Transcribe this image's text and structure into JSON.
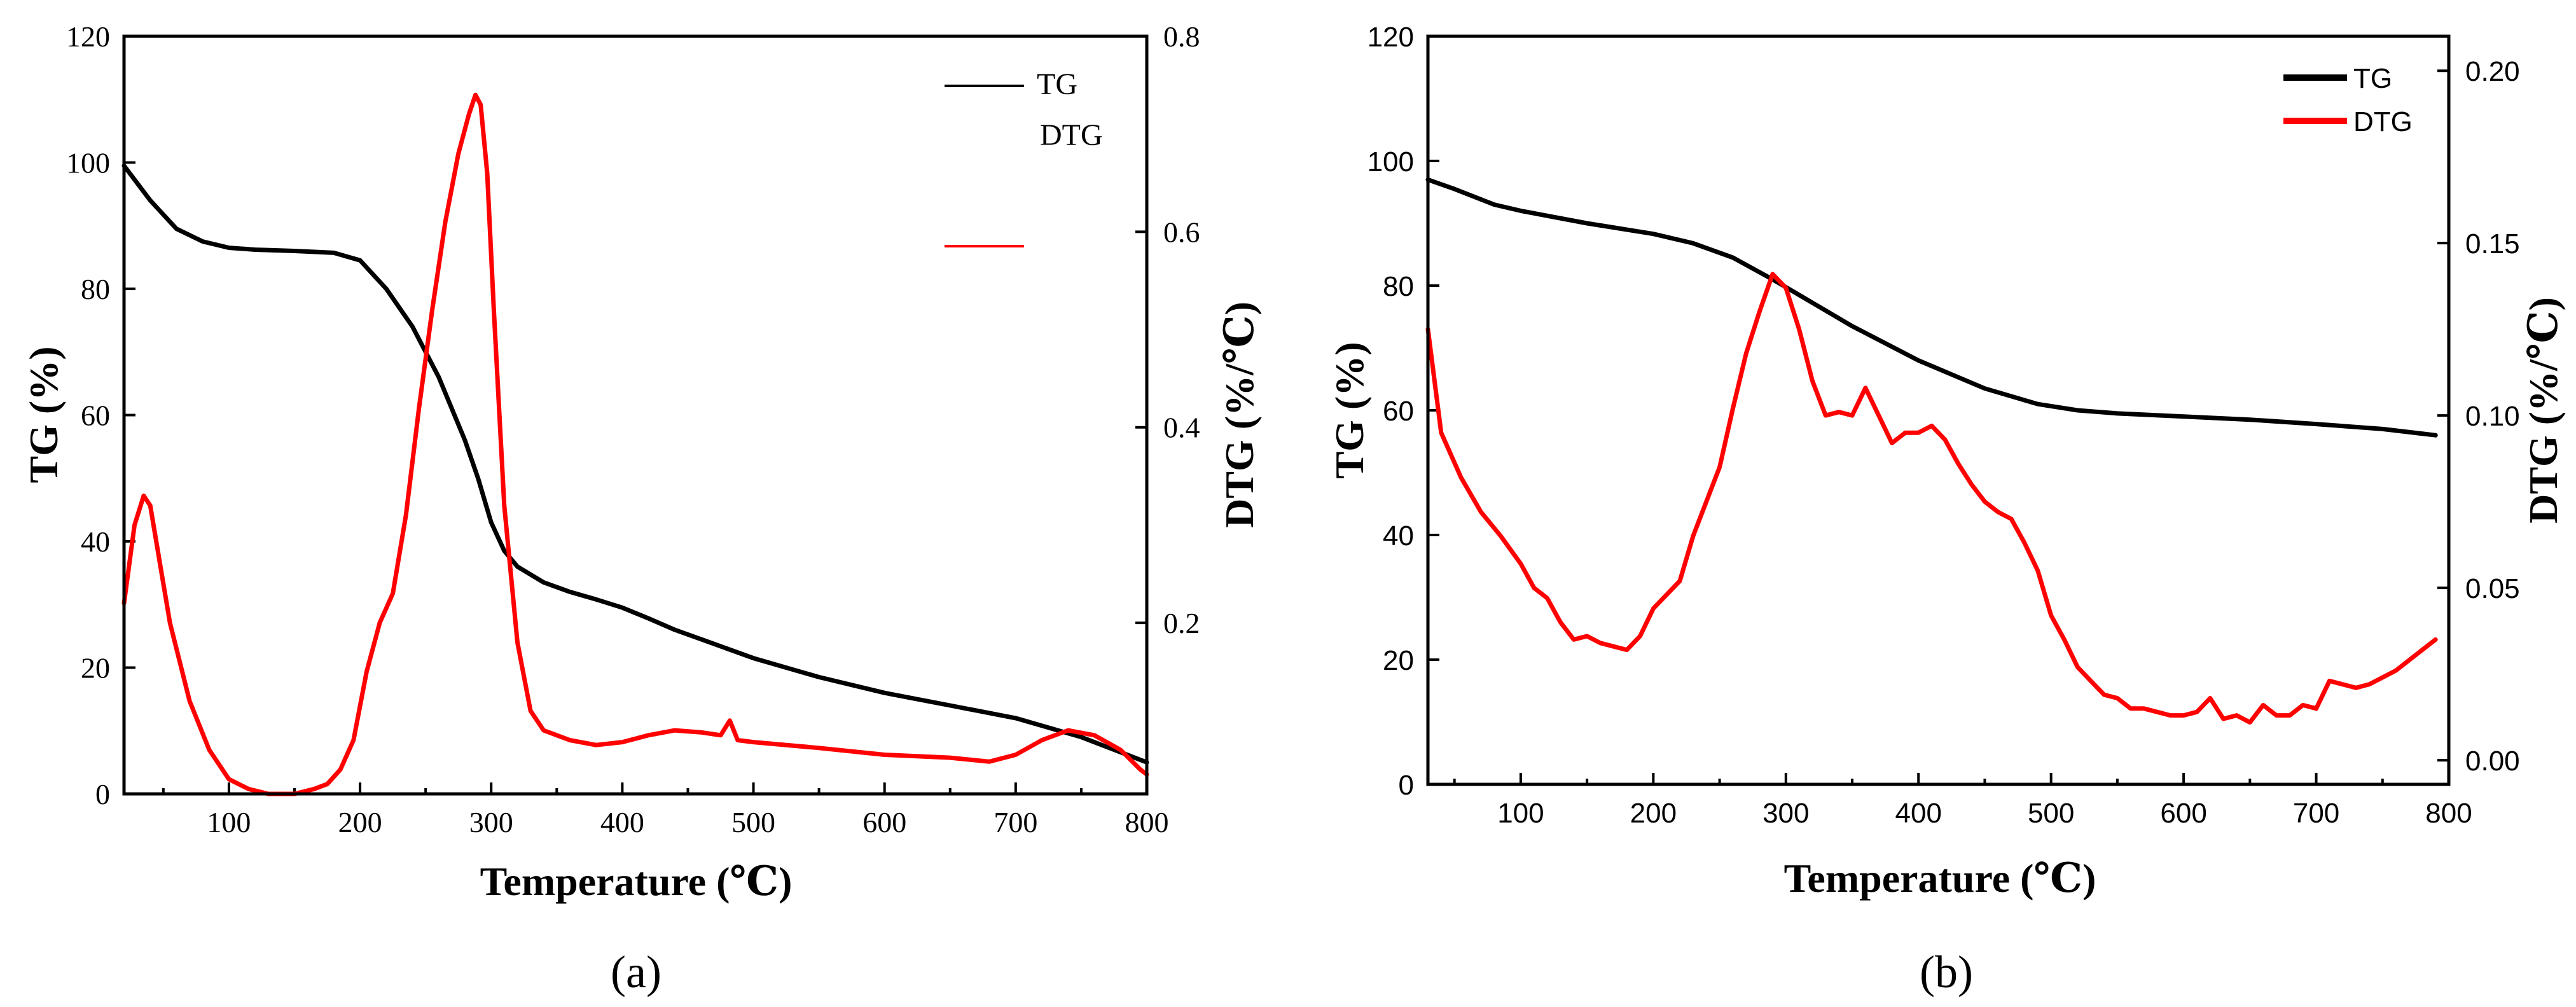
{
  "chart_data": [
    {
      "id": "a",
      "type": "line",
      "panel_label": "(a)",
      "xlabel": "Temperature (℃)",
      "ylabel_left": "TG (%)",
      "ylabel_right": "DTG (%/℃)",
      "xlim": [
        20,
        800
      ],
      "ylim_left": [
        0,
        120
      ],
      "ylim_right": [
        0.025,
        0.8
      ],
      "x_ticks": [
        100,
        200,
        300,
        400,
        500,
        600,
        700,
        800
      ],
      "y_left_ticks": [
        0,
        20,
        40,
        60,
        80,
        100,
        120
      ],
      "y_right_ticks": [
        0.2,
        0.4,
        0.6,
        0.8
      ],
      "y_right_tick_labels": [
        "0.2",
        "0.4",
        "0.6",
        "0.8"
      ],
      "legend": [
        {
          "name": "TG",
          "color": "#000000"
        },
        {
          "name": "DTG",
          "color": "#ff0000"
        }
      ],
      "series": [
        {
          "name": "TG",
          "axis": "left",
          "color": "#000000",
          "x": [
            20,
            40,
            60,
            80,
            100,
            120,
            150,
            180,
            200,
            220,
            240,
            260,
            280,
            290,
            300,
            310,
            320,
            340,
            360,
            380,
            400,
            420,
            440,
            460,
            480,
            500,
            550,
            600,
            650,
            700,
            750,
            800
          ],
          "y": [
            99.5,
            94,
            89.5,
            87.5,
            86.5,
            86.2,
            86,
            85.7,
            84.5,
            80,
            74,
            66,
            56,
            50,
            43,
            38.5,
            36,
            33.5,
            32,
            30.8,
            29.5,
            27.8,
            26,
            24.5,
            23,
            21.5,
            18.5,
            16,
            14,
            12,
            9,
            5
          ]
        },
        {
          "name": "DTG",
          "axis": "right",
          "color": "#ff0000",
          "x": [
            20,
            28,
            35,
            40,
            45,
            55,
            70,
            85,
            100,
            115,
            130,
            150,
            165,
            175,
            185,
            195,
            205,
            215,
            225,
            235,
            245,
            255,
            265,
            275,
            283,
            288,
            292,
            297,
            302,
            310,
            320,
            330,
            340,
            360,
            380,
            400,
            420,
            440,
            460,
            475,
            482,
            488,
            500,
            550,
            600,
            650,
            680,
            700,
            720,
            740,
            760,
            780,
            795,
            800
          ],
          "y": [
            0.22,
            0.3,
            0.33,
            0.32,
            0.28,
            0.2,
            0.12,
            0.07,
            0.04,
            0.03,
            0.025,
            0.025,
            0.03,
            0.035,
            0.05,
            0.08,
            0.15,
            0.2,
            0.23,
            0.31,
            0.42,
            0.52,
            0.61,
            0.68,
            0.72,
            0.74,
            0.73,
            0.66,
            0.52,
            0.32,
            0.18,
            0.11,
            0.09,
            0.08,
            0.075,
            0.078,
            0.085,
            0.09,
            0.088,
            0.085,
            0.1,
            0.08,
            0.078,
            0.072,
            0.065,
            0.062,
            0.058,
            0.065,
            0.08,
            0.09,
            0.085,
            0.07,
            0.05,
            0.045
          ]
        }
      ]
    },
    {
      "id": "b",
      "type": "line",
      "panel_label": "(b)",
      "xlabel": "Temperature (℃)",
      "ylabel_left": "TG (%)",
      "ylabel_right": "DTG (%/℃)",
      "xlim": [
        30,
        800
      ],
      "ylim_left": [
        0,
        120
      ],
      "ylim_right": [
        -0.007,
        0.21
      ],
      "x_ticks": [
        100,
        200,
        300,
        400,
        500,
        600,
        700,
        800
      ],
      "y_left_ticks": [
        0,
        20,
        40,
        60,
        80,
        100,
        120
      ],
      "y_right_ticks": [
        0.0,
        0.05,
        0.1,
        0.15,
        0.2
      ],
      "y_right_tick_labels": [
        "0.00",
        "0.05",
        "0.10",
        "0.15",
        "0.20"
      ],
      "legend": [
        {
          "name": "TG",
          "color": "#000000"
        },
        {
          "name": "DTG",
          "color": "#ff0000"
        }
      ],
      "series": [
        {
          "name": "TG",
          "axis": "left",
          "color": "#000000",
          "x": [
            30,
            50,
            80,
            100,
            150,
            200,
            230,
            260,
            290,
            310,
            350,
            400,
            450,
            490,
            520,
            550,
            600,
            650,
            700,
            750,
            790
          ],
          "y": [
            97,
            95.5,
            93,
            92,
            90,
            88.3,
            86.8,
            84.5,
            81,
            78.5,
            73.5,
            68,
            63.5,
            61,
            60,
            59.5,
            59,
            58.5,
            57.8,
            57,
            56
          ]
        },
        {
          "name": "DTG",
          "axis": "right",
          "color": "#ff0000",
          "x": [
            30,
            40,
            55,
            70,
            85,
            100,
            110,
            120,
            130,
            140,
            150,
            160,
            170,
            180,
            190,
            200,
            210,
            220,
            230,
            240,
            250,
            260,
            270,
            280,
            290,
            300,
            310,
            320,
            330,
            340,
            350,
            360,
            370,
            380,
            390,
            400,
            410,
            420,
            430,
            440,
            450,
            460,
            470,
            480,
            490,
            500,
            510,
            520,
            530,
            540,
            550,
            560,
            570,
            580,
            590,
            600,
            610,
            620,
            630,
            640,
            650,
            660,
            670,
            680,
            690,
            700,
            710,
            720,
            730,
            740,
            750,
            760,
            770,
            780,
            790
          ],
          "y": [
            0.125,
            0.095,
            0.082,
            0.072,
            0.065,
            0.057,
            0.05,
            0.047,
            0.04,
            0.035,
            0.036,
            0.034,
            0.033,
            0.032,
            0.036,
            0.044,
            0.048,
            0.052,
            0.065,
            0.075,
            0.085,
            0.102,
            0.118,
            0.13,
            0.141,
            0.137,
            0.125,
            0.11,
            0.1,
            0.101,
            0.1,
            0.108,
            0.1,
            0.092,
            0.095,
            0.095,
            0.097,
            0.093,
            0.086,
            0.08,
            0.075,
            0.072,
            0.07,
            0.063,
            0.055,
            0.042,
            0.035,
            0.027,
            0.023,
            0.019,
            0.018,
            0.015,
            0.015,
            0.014,
            0.013,
            0.013,
            0.014,
            0.018,
            0.012,
            0.013,
            0.011,
            0.016,
            0.013,
            0.013,
            0.016,
            0.015,
            0.023,
            0.022,
            0.021,
            0.022,
            0.024,
            0.026,
            0.029,
            0.032,
            0.035
          ]
        }
      ]
    }
  ]
}
